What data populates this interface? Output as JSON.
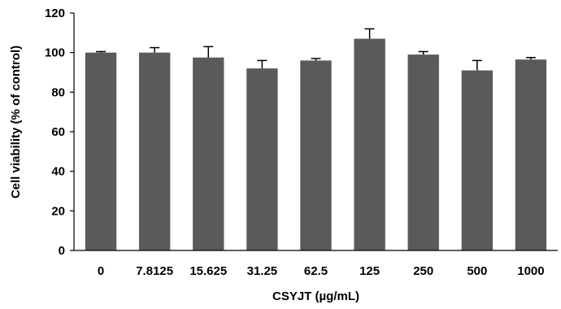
{
  "chart_data": {
    "type": "bar",
    "title": "",
    "xlabel": "CSYJT (µg/mL)",
    "ylabel": "Cell viability (% of control)",
    "categories": [
      "0",
      "7.8125",
      "15.625",
      "31.25",
      "62.5",
      "125",
      "250",
      "500",
      "1000"
    ],
    "values": [
      100,
      100,
      97.5,
      92,
      96,
      107,
      99,
      91,
      96.5
    ],
    "errors": [
      0.5,
      2.5,
      5.5,
      4,
      1,
      5,
      1.5,
      5,
      1
    ],
    "ylim": [
      0,
      120
    ],
    "yticks": [
      0,
      20,
      40,
      60,
      80,
      100,
      120
    ],
    "grid": false,
    "legend": "none",
    "bar_color": "#5a5a5a",
    "axis_color": "#000000"
  }
}
